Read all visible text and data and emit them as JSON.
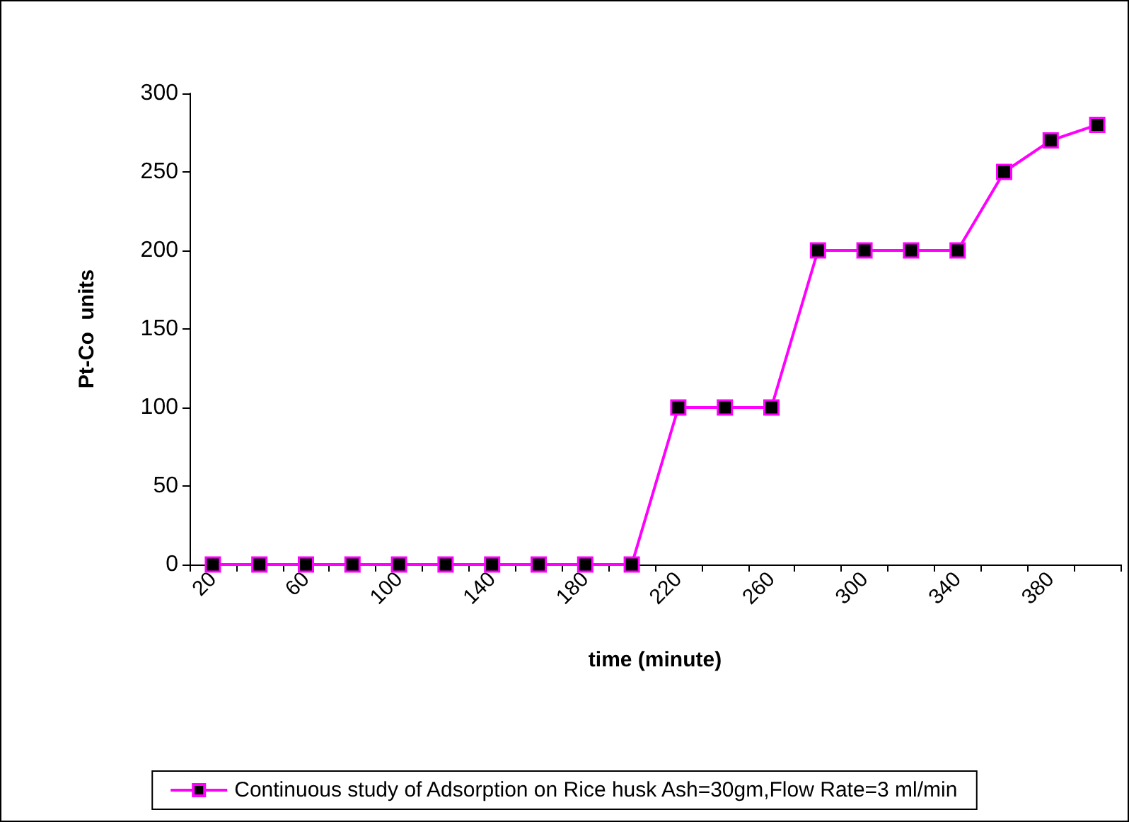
{
  "chart_data": {
    "type": "line",
    "xlabel": "time (minute)",
    "ylabel": "Pt-Co  units",
    "categories": [
      "20",
      null,
      "60",
      null,
      "100",
      null,
      "140",
      null,
      "180",
      null,
      "220",
      null,
      "260",
      null,
      "300",
      null,
      "340",
      null,
      "380",
      null
    ],
    "series": [
      {
        "name": "Continuous study of Adsorption on Rice husk Ash=30gm,Flow Rate=3 ml/min",
        "color": "#ff00ff",
        "values": [
          0,
          0,
          0,
          0,
          0,
          0,
          0,
          0,
          0,
          0,
          100,
          100,
          100,
          200,
          200,
          200,
          200,
          250,
          270,
          280
        ]
      }
    ],
    "ylim": [
      0,
      300
    ],
    "yticks": [
      0,
      50,
      100,
      150,
      200,
      250,
      300
    ],
    "grid": false,
    "legend": "bottom",
    "marker": "square",
    "line_style": "solid"
  }
}
